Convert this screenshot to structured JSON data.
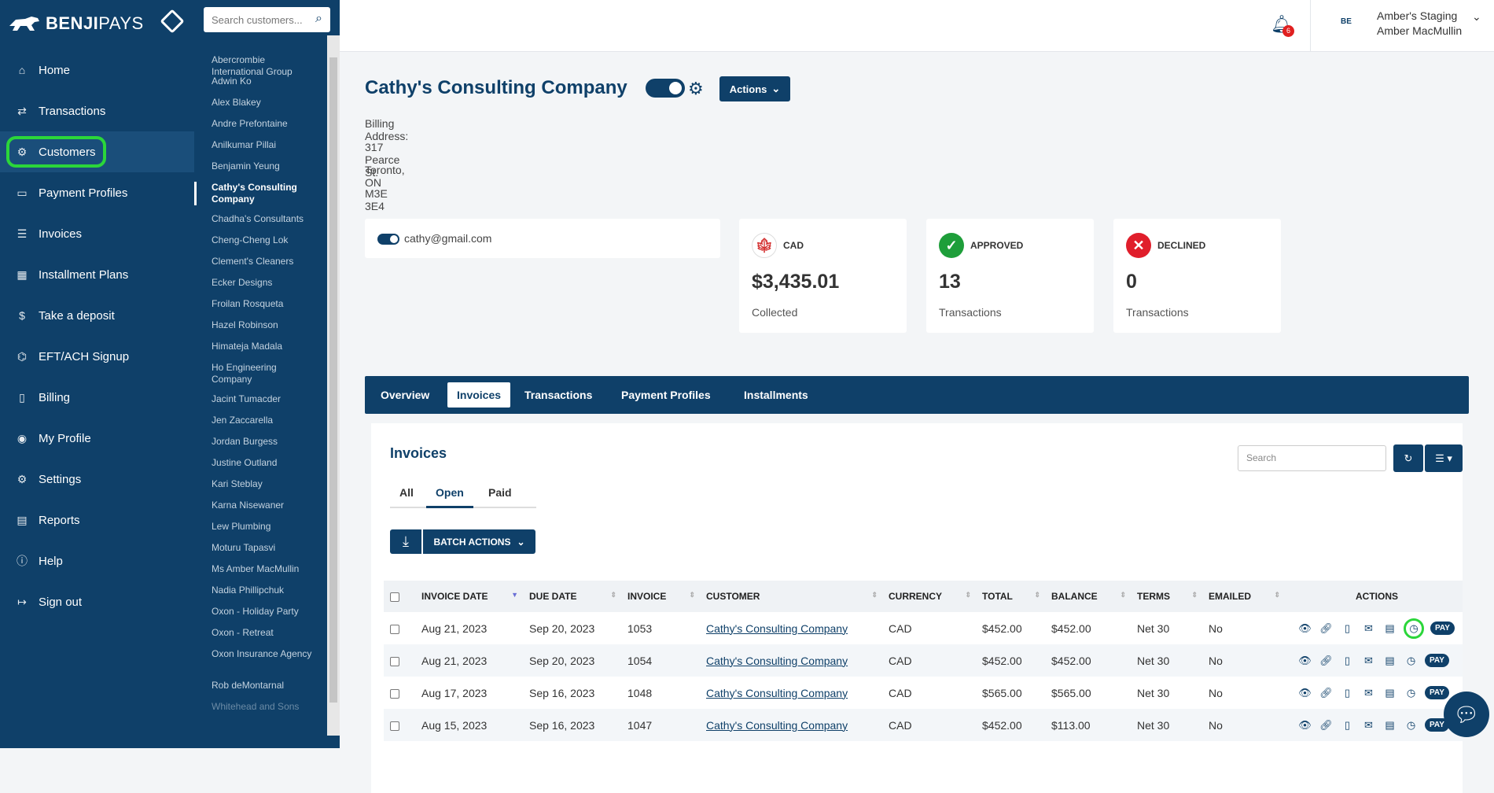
{
  "brand": {
    "name_bold": "BENJI",
    "name_light": "PAYS"
  },
  "nav": [
    {
      "label": "Home",
      "icon": "home-icon"
    },
    {
      "label": "Transactions",
      "icon": "transactions-icon"
    },
    {
      "label": "Customers",
      "icon": "customers-icon"
    },
    {
      "label": "Payment Profiles",
      "icon": "payment-profiles-icon"
    },
    {
      "label": "Invoices",
      "icon": "invoices-icon"
    },
    {
      "label": "Installment Plans",
      "icon": "calendar-icon"
    },
    {
      "label": "Take a deposit",
      "icon": "deposit-icon"
    },
    {
      "label": "EFT/ACH Signup",
      "icon": "bank-icon"
    },
    {
      "label": "Billing",
      "icon": "billing-icon"
    },
    {
      "label": "My Profile",
      "icon": "profile-icon"
    },
    {
      "label": "Settings",
      "icon": "gear-icon"
    },
    {
      "label": "Reports",
      "icon": "reports-icon"
    },
    {
      "label": "Help",
      "icon": "help-icon"
    },
    {
      "label": "Sign out",
      "icon": "sign-out-icon"
    }
  ],
  "customer_search": {
    "placeholder": "Search customers..."
  },
  "customers": [
    "Abercrombie International Group",
    "Adwin Ko",
    "Alex Blakey",
    "Andre Prefontaine",
    "Anilkumar Pillai",
    "Benjamin Yeung",
    "Cathy's Consulting Company",
    "Chadha's Consultants",
    "Cheng-Cheng Lok",
    "Clement's Cleaners",
    "Ecker Designs",
    "Froilan Rosqueta",
    "Hazel Robinson",
    "Himateja Madala",
    "Ho Engineering Company",
    "Jacint Tumacder",
    "Jen Zaccarella",
    "Jordan Burgess",
    "Justine Outland",
    "Kari Steblay",
    "Karna Nisewaner",
    "Lew Plumbing",
    "Moturu Tapasvi",
    "Ms Amber MacMullin",
    "Nadia Phillipchuk",
    "Oxon - Holiday Party",
    "Oxon - Retreat",
    "Oxon Insurance Agency",
    "Rob deMontarnal",
    "Whitehead and Sons"
  ],
  "header": {
    "notifications": "6",
    "user_logo": "BE",
    "org": "Amber's Staging",
    "user": "Amber MacMullin"
  },
  "company": {
    "name": "Cathy's Consulting Company",
    "actions_label": "Actions",
    "billing_label": "Billing Address:",
    "address": [
      "317 Pearce St.",
      "Toronto, ON",
      "M3E 3E4"
    ],
    "email": "cathy@gmail.com"
  },
  "stats": [
    {
      "label": "CAD",
      "value": "$3,435.01",
      "sub": "Collected",
      "color": "#d32f2f",
      "icon": "canada-flag-icon"
    },
    {
      "label": "APPROVED",
      "value": "13",
      "sub": "Transactions",
      "color": "#1e9e3a",
      "icon": "check-icon"
    },
    {
      "label": "DECLINED",
      "value": "0",
      "sub": "Transactions",
      "color": "#e01e2b",
      "icon": "x-icon"
    }
  ],
  "tabs": [
    "Overview",
    "Invoices",
    "Transactions",
    "Payment Profiles",
    "Installments"
  ],
  "invoices": {
    "title": "Invoices",
    "search_placeholder": "Search",
    "subtabs": [
      "All",
      "Open",
      "Paid"
    ],
    "batch_label": "BATCH ACTIONS",
    "columns": [
      "INVOICE DATE",
      "DUE DATE",
      "INVOICE",
      "CUSTOMER",
      "CURRENCY",
      "TOTAL",
      "BALANCE",
      "TERMS",
      "EMAILED",
      "ACTIONS"
    ],
    "pay_label": "PAY",
    "rows": [
      {
        "date": "Aug 21, 2023",
        "due": "Sep 20, 2023",
        "invoice": "1053",
        "customer": "Cathy's Consulting Company",
        "currency": "CAD",
        "total": "$452.00",
        "balance": "$452.00",
        "terms": "Net 30",
        "emailed": "No"
      },
      {
        "date": "Aug 21, 2023",
        "due": "Sep 20, 2023",
        "invoice": "1054",
        "customer": "Cathy's Consulting Company",
        "currency": "CAD",
        "total": "$452.00",
        "balance": "$452.00",
        "terms": "Net 30",
        "emailed": "No"
      },
      {
        "date": "Aug 17, 2023",
        "due": "Sep 16, 2023",
        "invoice": "1048",
        "customer": "Cathy's Consulting Company",
        "currency": "CAD",
        "total": "$565.00",
        "balance": "$565.00",
        "terms": "Net 30",
        "emailed": "No"
      },
      {
        "date": "Aug 15, 2023",
        "due": "Sep 16, 2023",
        "invoice": "1047",
        "customer": "Cathy's Consulting Company",
        "currency": "CAD",
        "total": "$452.00",
        "balance": "$113.00",
        "terms": "Net 30",
        "emailed": "No"
      }
    ]
  }
}
